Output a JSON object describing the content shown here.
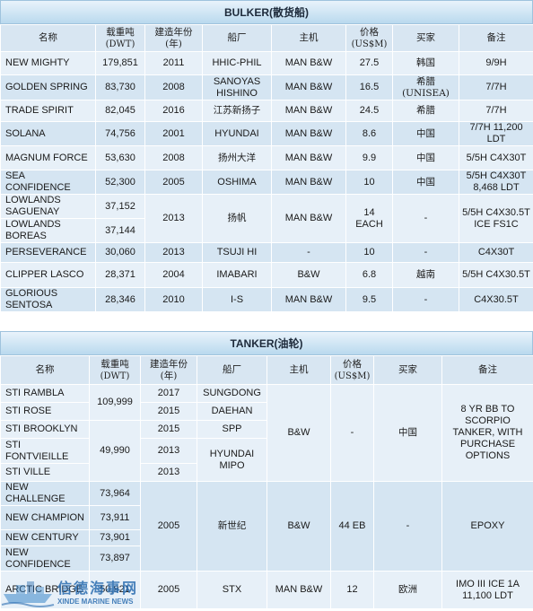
{
  "bulker": {
    "title": "BULKER(散货船)",
    "headers": [
      "名称",
      "载重吨",
      "(DWT)",
      "建造年份",
      "(年)",
      "船厂",
      "主机",
      "价格",
      "(US$M)",
      "买家",
      "备注"
    ],
    "rows": [
      {
        "name": "NEW MIGHTY",
        "dwt": "179,851",
        "year": "2011",
        "yard": "HHIC-PHIL",
        "engine": "MAN B&W",
        "price": "27.5",
        "buyer": "韩国",
        "note": "9/9H"
      },
      {
        "name": "GOLDEN SPRING",
        "dwt": "83,730",
        "year": "2008",
        "yard": "SANOYAS HISHINO",
        "engine": "MAN B&W",
        "price": "16.5",
        "buyer": "希腊 (UNISEA)",
        "note": "7/7H"
      },
      {
        "name": "TRADE SPIRIT",
        "dwt": "82,045",
        "year": "2016",
        "yard": "江苏新扬子",
        "engine": "MAN B&W",
        "price": "24.5",
        "buyer": "希腊",
        "note": "7/7H"
      },
      {
        "name": "SOLANA",
        "dwt": "74,756",
        "year": "2001",
        "yard": "HYUNDAI",
        "engine": "MAN B&W",
        "price": "8.6",
        "buyer": "中国",
        "note": "7/7H 11,200 LDT"
      },
      {
        "name": "MAGNUM FORCE",
        "dwt": "53,630",
        "year": "2008",
        "yard": "扬州大洋",
        "engine": "MAN B&W",
        "price": "9.9",
        "buyer": "中国",
        "note": "5/5H C4X30T"
      },
      {
        "name": "SEA CONFIDENCE",
        "dwt": "52,300",
        "year": "2005",
        "yard": "OSHIMA",
        "engine": "MAN B&W",
        "price": "10",
        "buyer": "中国",
        "note": "5/5H C4X30T 8,468 LDT"
      },
      {
        "name": "LOWLANDS SAGUENAY",
        "dwt": "37,152"
      },
      {
        "name": "LOWLANDS BOREAS",
        "dwt": "37,144"
      },
      {
        "name": "PERSEVERANCE",
        "dwt": "30,060",
        "year": "2013",
        "yard": "TSUJI HI",
        "engine": "-",
        "price": "10",
        "buyer": "-",
        "note": "C4X30T"
      },
      {
        "name": "CLIPPER LASCO",
        "dwt": "28,371",
        "year": "2004",
        "yard": "IMABARI",
        "engine": "B&W",
        "price": "6.8",
        "buyer": "越南",
        "note": "5/5H C4X30.5T"
      },
      {
        "name": "GLORIOUS SENTOSA",
        "dwt": "28,346",
        "year": "2010",
        "yard": "I-S",
        "engine": "MAN B&W",
        "price": "9.5",
        "buyer": "-",
        "note": "C4X30.5T"
      }
    ],
    "lowlands": {
      "year": "2013",
      "yard": "扬帆",
      "engine": "MAN B&W",
      "price": "14 EACH",
      "buyer": "-",
      "note": "5/5H C4X30.5T ICE FS1C"
    }
  },
  "tanker": {
    "title": "TANKER(油轮)",
    "headers": [
      "名称",
      "载重吨",
      "(DWT)",
      "建造年份",
      "(年)",
      "船厂",
      "主机",
      "价格",
      "(US$M)",
      "买家",
      "备注"
    ],
    "sti": {
      "names": [
        "STI RAMBLA",
        "STI ROSE",
        "STI BROOKLYN",
        "STI FONTVIEILLE",
        "STI VILLE"
      ],
      "dwt_a": "109,999",
      "dwt_b": "49,990",
      "years": [
        "2017",
        "2015",
        "2015",
        "2013",
        "2013"
      ],
      "yards": [
        "SUNGDONG",
        "DAEHAN",
        "SPP",
        "HYUNDAI MIPO"
      ],
      "engine": "B&W",
      "price": "-",
      "buyer": "中国",
      "note": "8 YR BB TO SCORPIO TANKER, WITH PURCHASE OPTIONS"
    },
    "newgroup": {
      "names": [
        "NEW CHALLENGE",
        "NEW CHAMPION",
        "NEW CENTURY",
        "NEW CONFIDENCE"
      ],
      "dwts": [
        "73,964",
        "73,911",
        "73,901",
        "73,897"
      ],
      "year": "2005",
      "yard": "新世纪",
      "engine": "B&W",
      "price": "44 EB",
      "buyer": "-",
      "note": "EPOXY"
    },
    "arctic": {
      "name": "ARCTIC BRIDGE",
      "dwt": "50,921",
      "year": "2005",
      "yard": "STX",
      "engine": "MAN B&W",
      "price": "12",
      "buyer": "欧洲",
      "note": "IMO III ICE 1A 11,100 LDT"
    }
  },
  "watermark": {
    "cn": "信德海事网",
    "en": "XINDE MARINE NEWS",
    "logo_icon": "ship-logo-icon"
  }
}
